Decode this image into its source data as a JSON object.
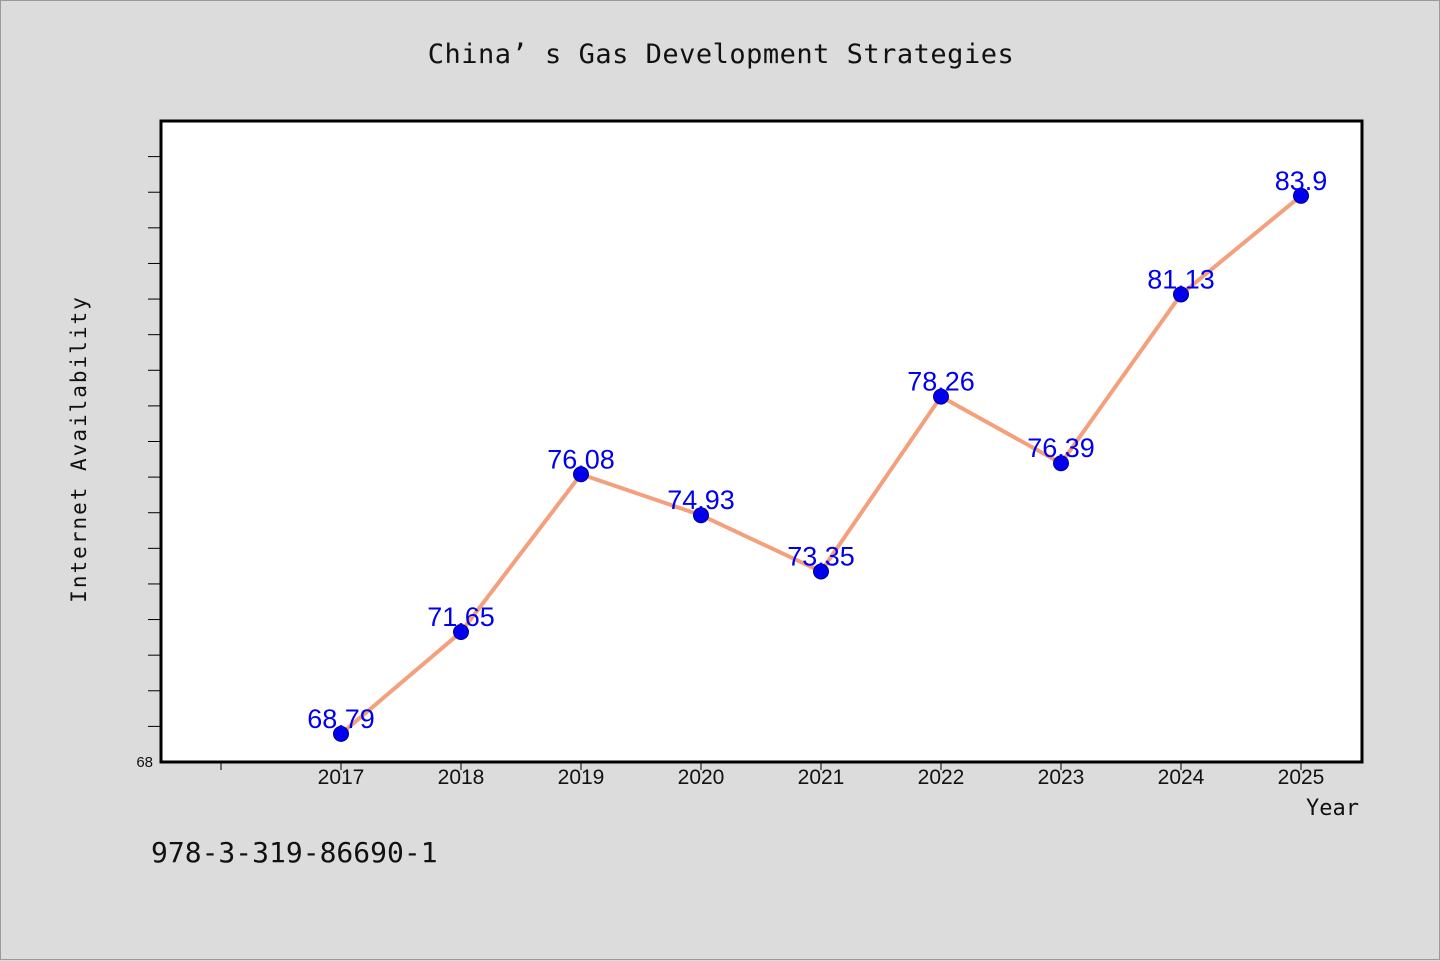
{
  "chart_data": {
    "type": "line",
    "title": "China’ s Gas Development Strategies",
    "xlabel": "Year",
    "ylabel": "Internet Availability",
    "categories": [
      "2017",
      "2018",
      "2019",
      "2020",
      "2021",
      "2022",
      "2023",
      "2024",
      "2025"
    ],
    "series": [
      {
        "values": [
          68.79,
          71.65,
          76.08,
          74.93,
          73.35,
          78.26,
          76.39,
          81.13,
          83.9
        ]
      }
    ],
    "data_labels": [
      "68.79",
      "71.65",
      "76.08",
      "74.93",
      "73.35",
      "78.26",
      "76.39",
      "81.13",
      "83.9"
    ],
    "ylim": [
      68,
      86
    ],
    "y_tick_labels": [
      "68"
    ],
    "grid": false,
    "colors": {
      "line": "#f4a07c",
      "marker": "#0000ee",
      "label": "#0000ee",
      "background": "#dcdcdc",
      "plot_bg": "#ffffff"
    }
  },
  "footer": {
    "code": "978-3-319-86690-1"
  }
}
